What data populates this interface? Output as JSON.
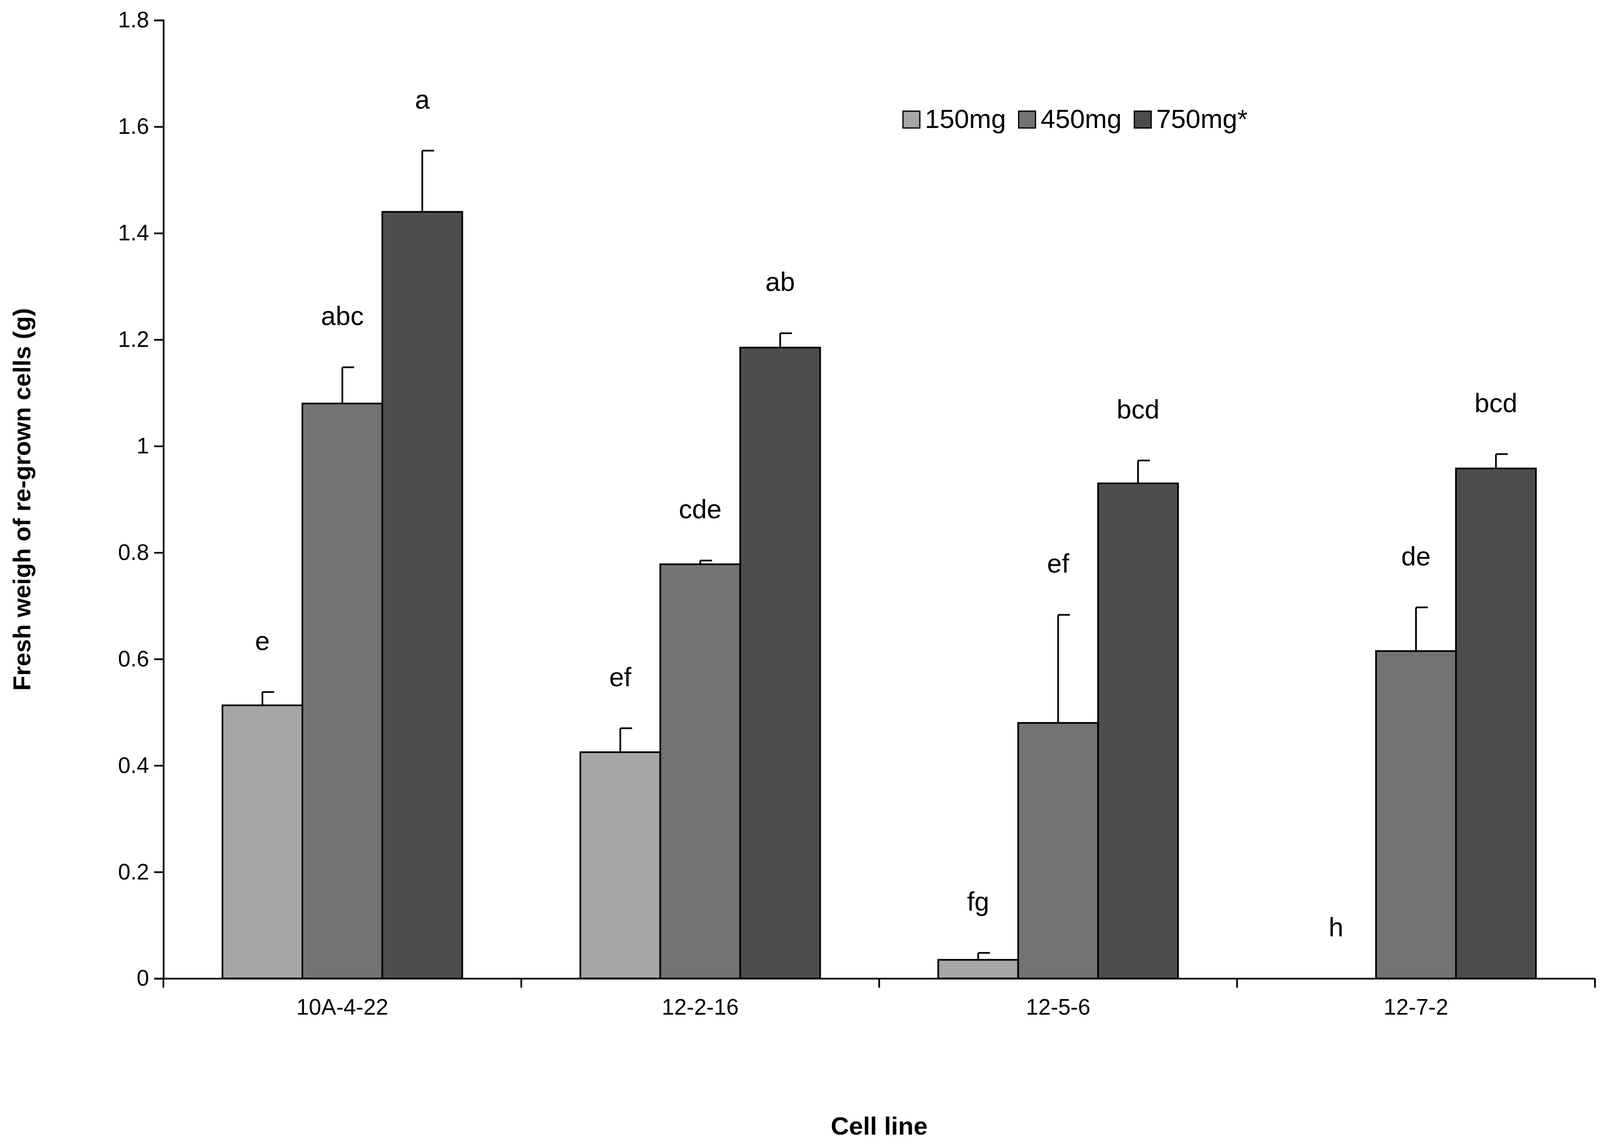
{
  "chart_data": {
    "type": "bar",
    "x_label": "Cell line",
    "y_label": "Fresh weigh of re-grown cells (g)",
    "categories": [
      "10A-4-22",
      "12-2-16",
      "12-5-6",
      "12-7-2"
    ],
    "series": [
      {
        "name": "150mg",
        "color": "#a6a6a6",
        "values": [
          0.513,
          0.425,
          0.035,
          0
        ],
        "errors": [
          0.025,
          0.045,
          0.013,
          0
        ],
        "letters": [
          "e",
          "ef",
          "fg",
          "h"
        ]
      },
      {
        "name": "450mg",
        "color": "#737373",
        "values": [
          1.08,
          0.778,
          0.48,
          0.615
        ],
        "errors": [
          0.068,
          0.007,
          0.203,
          0.082
        ],
        "letters": [
          "abc",
          "cde",
          "ef",
          "de"
        ]
      },
      {
        "name": "750mg*",
        "color": "#4d4d4d",
        "values": [
          1.44,
          1.185,
          0.93,
          0.958
        ],
        "errors": [
          0.115,
          0.027,
          0.043,
          0.027
        ],
        "letters": [
          "a",
          "ab",
          "bcd",
          "bcd"
        ]
      }
    ],
    "ylim": [
      0,
      1.8
    ],
    "yticks": [
      0,
      0.2,
      0.4,
      0.6,
      0.8,
      1,
      1.2,
      1.4,
      1.6,
      1.8
    ],
    "grid": false,
    "legend": "top-right"
  }
}
